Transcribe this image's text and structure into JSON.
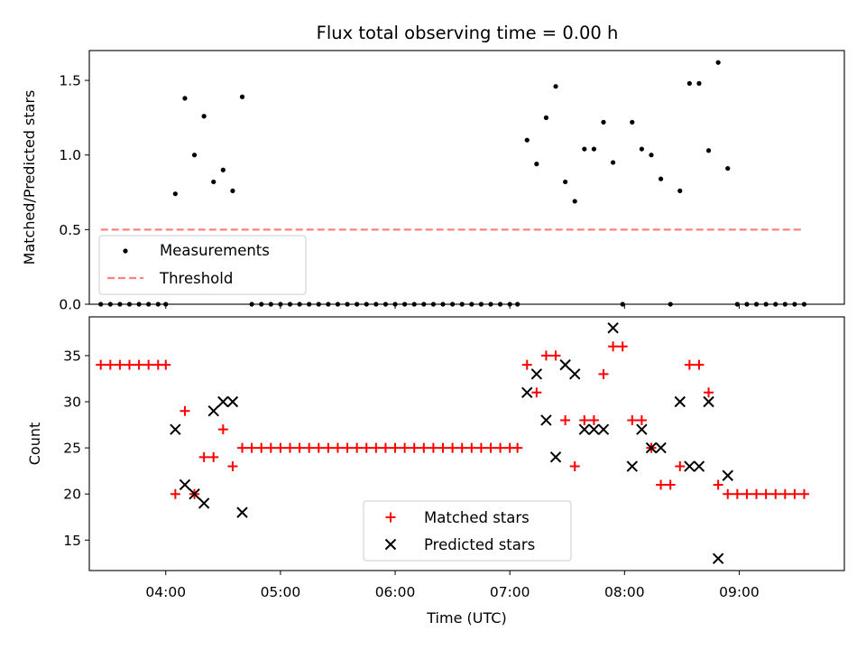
{
  "chart_data": [
    {
      "type": "scatter",
      "title": "Flux total observing time = 0.00 h",
      "xlabel": "",
      "ylabel": "Matched/Predicted stars",
      "ylim": [
        0,
        1.7
      ],
      "xlim": [
        "03:20",
        "09:55"
      ],
      "yticks": [
        "0.0",
        "0.5",
        "1.0",
        "1.5"
      ],
      "legend": {
        "placement": "bottom-left",
        "entries": [
          "Measurements",
          "Threshold"
        ]
      },
      "colors": {
        "measurements": "#000000",
        "threshold": "#ff8080"
      },
      "series": [
        {
          "name": "Measurements",
          "marker": "dot",
          "points": [
            [
              "03:26",
              0
            ],
            [
              "03:31",
              0
            ],
            [
              "03:36",
              0
            ],
            [
              "03:41",
              0
            ],
            [
              "03:46",
              0
            ],
            [
              "03:51",
              0
            ],
            [
              "03:56",
              0
            ],
            [
              "04:00",
              0
            ],
            [
              "04:05",
              0.74
            ],
            [
              "04:10",
              1.38
            ],
            [
              "04:15",
              1.0
            ],
            [
              "04:20",
              1.26
            ],
            [
              "04:25",
              0.82
            ],
            [
              "04:30",
              0.9
            ],
            [
              "04:35",
              0.76
            ],
            [
              "04:40",
              1.39
            ],
            [
              "04:45",
              0
            ],
            [
              "04:50",
              0
            ],
            [
              "04:55",
              0
            ],
            [
              "05:00",
              0
            ],
            [
              "05:05",
              0
            ],
            [
              "05:10",
              0
            ],
            [
              "05:15",
              0
            ],
            [
              "05:20",
              0
            ],
            [
              "05:25",
              0
            ],
            [
              "05:30",
              0
            ],
            [
              "05:35",
              0
            ],
            [
              "05:40",
              0
            ],
            [
              "05:45",
              0
            ],
            [
              "05:50",
              0
            ],
            [
              "05:55",
              0
            ],
            [
              "06:00",
              0
            ],
            [
              "06:05",
              0
            ],
            [
              "06:10",
              0
            ],
            [
              "06:15",
              0
            ],
            [
              "06:20",
              0
            ],
            [
              "06:25",
              0
            ],
            [
              "06:30",
              0
            ],
            [
              "06:35",
              0
            ],
            [
              "06:40",
              0
            ],
            [
              "06:45",
              0
            ],
            [
              "06:50",
              0
            ],
            [
              "06:55",
              0
            ],
            [
              "07:00",
              0
            ],
            [
              "07:04",
              0
            ],
            [
              "07:09",
              1.1
            ],
            [
              "07:14",
              0.94
            ],
            [
              "07:19",
              1.25
            ],
            [
              "07:24",
              1.46
            ],
            [
              "07:29",
              0.82
            ],
            [
              "07:34",
              0.69
            ],
            [
              "07:39",
              1.04
            ],
            [
              "07:44",
              1.04
            ],
            [
              "07:49",
              1.22
            ],
            [
              "07:54",
              0.95
            ],
            [
              "07:59",
              0
            ],
            [
              "08:04",
              1.22
            ],
            [
              "08:09",
              1.04
            ],
            [
              "08:14",
              1.0
            ],
            [
              "08:19",
              0.84
            ],
            [
              "08:24",
              0
            ],
            [
              "08:29",
              0.76
            ],
            [
              "08:34",
              1.48
            ],
            [
              "08:39",
              1.48
            ],
            [
              "08:44",
              1.03
            ],
            [
              "08:49",
              1.62
            ],
            [
              "08:54",
              0.91
            ],
            [
              "08:59",
              0
            ],
            [
              "09:04",
              0
            ],
            [
              "09:09",
              0
            ],
            [
              "09:14",
              0
            ],
            [
              "09:19",
              0
            ],
            [
              "09:24",
              0
            ],
            [
              "09:29",
              0
            ],
            [
              "09:34",
              0
            ]
          ]
        },
        {
          "name": "Threshold",
          "marker": "dashed-line",
          "points": [
            [
              "03:26",
              0.5
            ],
            [
              "09:34",
              0.5
            ]
          ]
        }
      ]
    },
    {
      "type": "scatter",
      "title": "",
      "xlabel": "Time (UTC)",
      "ylabel": "Count",
      "ylim": [
        11.7,
        39.2
      ],
      "xlim": [
        "03:20",
        "09:55"
      ],
      "xticks": [
        "04:00",
        "05:00",
        "06:00",
        "07:00",
        "08:00",
        "09:00"
      ],
      "yticks": [
        "15",
        "20",
        "25",
        "30",
        "35"
      ],
      "legend": {
        "placement": "bottom-center",
        "entries": [
          "Matched stars",
          "Predicted stars"
        ]
      },
      "colors": {
        "matched": "#ff0000",
        "predicted": "#000000"
      },
      "series": [
        {
          "name": "Matched stars",
          "marker": "plus",
          "points": [
            [
              "03:26",
              34
            ],
            [
              "03:31",
              34
            ],
            [
              "03:36",
              34
            ],
            [
              "03:41",
              34
            ],
            [
              "03:46",
              34
            ],
            [
              "03:51",
              34
            ],
            [
              "03:56",
              34
            ],
            [
              "04:00",
              34
            ],
            [
              "04:05",
              20
            ],
            [
              "04:10",
              29
            ],
            [
              "04:15",
              20
            ],
            [
              "04:20",
              24
            ],
            [
              "04:25",
              24
            ],
            [
              "04:30",
              27
            ],
            [
              "04:35",
              23
            ],
            [
              "04:40",
              25
            ],
            [
              "04:45",
              25
            ],
            [
              "04:50",
              25
            ],
            [
              "04:55",
              25
            ],
            [
              "05:00",
              25
            ],
            [
              "05:05",
              25
            ],
            [
              "05:10",
              25
            ],
            [
              "05:15",
              25
            ],
            [
              "05:20",
              25
            ],
            [
              "05:25",
              25
            ],
            [
              "05:30",
              25
            ],
            [
              "05:35",
              25
            ],
            [
              "05:40",
              25
            ],
            [
              "05:45",
              25
            ],
            [
              "05:50",
              25
            ],
            [
              "05:55",
              25
            ],
            [
              "06:00",
              25
            ],
            [
              "06:05",
              25
            ],
            [
              "06:10",
              25
            ],
            [
              "06:15",
              25
            ],
            [
              "06:20",
              25
            ],
            [
              "06:25",
              25
            ],
            [
              "06:30",
              25
            ],
            [
              "06:35",
              25
            ],
            [
              "06:40",
              25
            ],
            [
              "06:45",
              25
            ],
            [
              "06:50",
              25
            ],
            [
              "06:55",
              25
            ],
            [
              "07:00",
              25
            ],
            [
              "07:04",
              25
            ],
            [
              "07:09",
              34
            ],
            [
              "07:14",
              31
            ],
            [
              "07:19",
              35
            ],
            [
              "07:24",
              35
            ],
            [
              "07:29",
              28
            ],
            [
              "07:34",
              23
            ],
            [
              "07:39",
              28
            ],
            [
              "07:44",
              28
            ],
            [
              "07:49",
              33
            ],
            [
              "07:54",
              36
            ],
            [
              "07:59",
              36
            ],
            [
              "08:04",
              28
            ],
            [
              "08:09",
              28
            ],
            [
              "08:14",
              25
            ],
            [
              "08:19",
              21
            ],
            [
              "08:24",
              21
            ],
            [
              "08:29",
              23
            ],
            [
              "08:34",
              34
            ],
            [
              "08:39",
              34
            ],
            [
              "08:44",
              31
            ],
            [
              "08:49",
              21
            ],
            [
              "08:54",
              20
            ],
            [
              "08:59",
              20
            ],
            [
              "09:04",
              20
            ],
            [
              "09:09",
              20
            ],
            [
              "09:14",
              20
            ],
            [
              "09:19",
              20
            ],
            [
              "09:24",
              20
            ],
            [
              "09:29",
              20
            ],
            [
              "09:34",
              20
            ]
          ]
        },
        {
          "name": "Predicted stars",
          "marker": "x",
          "points": [
            [
              "04:05",
              27
            ],
            [
              "04:10",
              21
            ],
            [
              "04:15",
              20
            ],
            [
              "04:20",
              19
            ],
            [
              "04:25",
              29
            ],
            [
              "04:30",
              30
            ],
            [
              "04:35",
              30
            ],
            [
              "04:40",
              18
            ],
            [
              "07:09",
              31
            ],
            [
              "07:14",
              33
            ],
            [
              "07:19",
              28
            ],
            [
              "07:24",
              24
            ],
            [
              "07:29",
              34
            ],
            [
              "07:34",
              33
            ],
            [
              "07:39",
              27
            ],
            [
              "07:44",
              27
            ],
            [
              "07:49",
              27
            ],
            [
              "07:54",
              38
            ],
            [
              "08:04",
              23
            ],
            [
              "08:09",
              27
            ],
            [
              "08:14",
              25
            ],
            [
              "08:19",
              25
            ],
            [
              "08:29",
              30
            ],
            [
              "08:34",
              23
            ],
            [
              "08:39",
              23
            ],
            [
              "08:44",
              30
            ],
            [
              "08:49",
              13
            ],
            [
              "08:54",
              22
            ]
          ]
        }
      ]
    }
  ]
}
